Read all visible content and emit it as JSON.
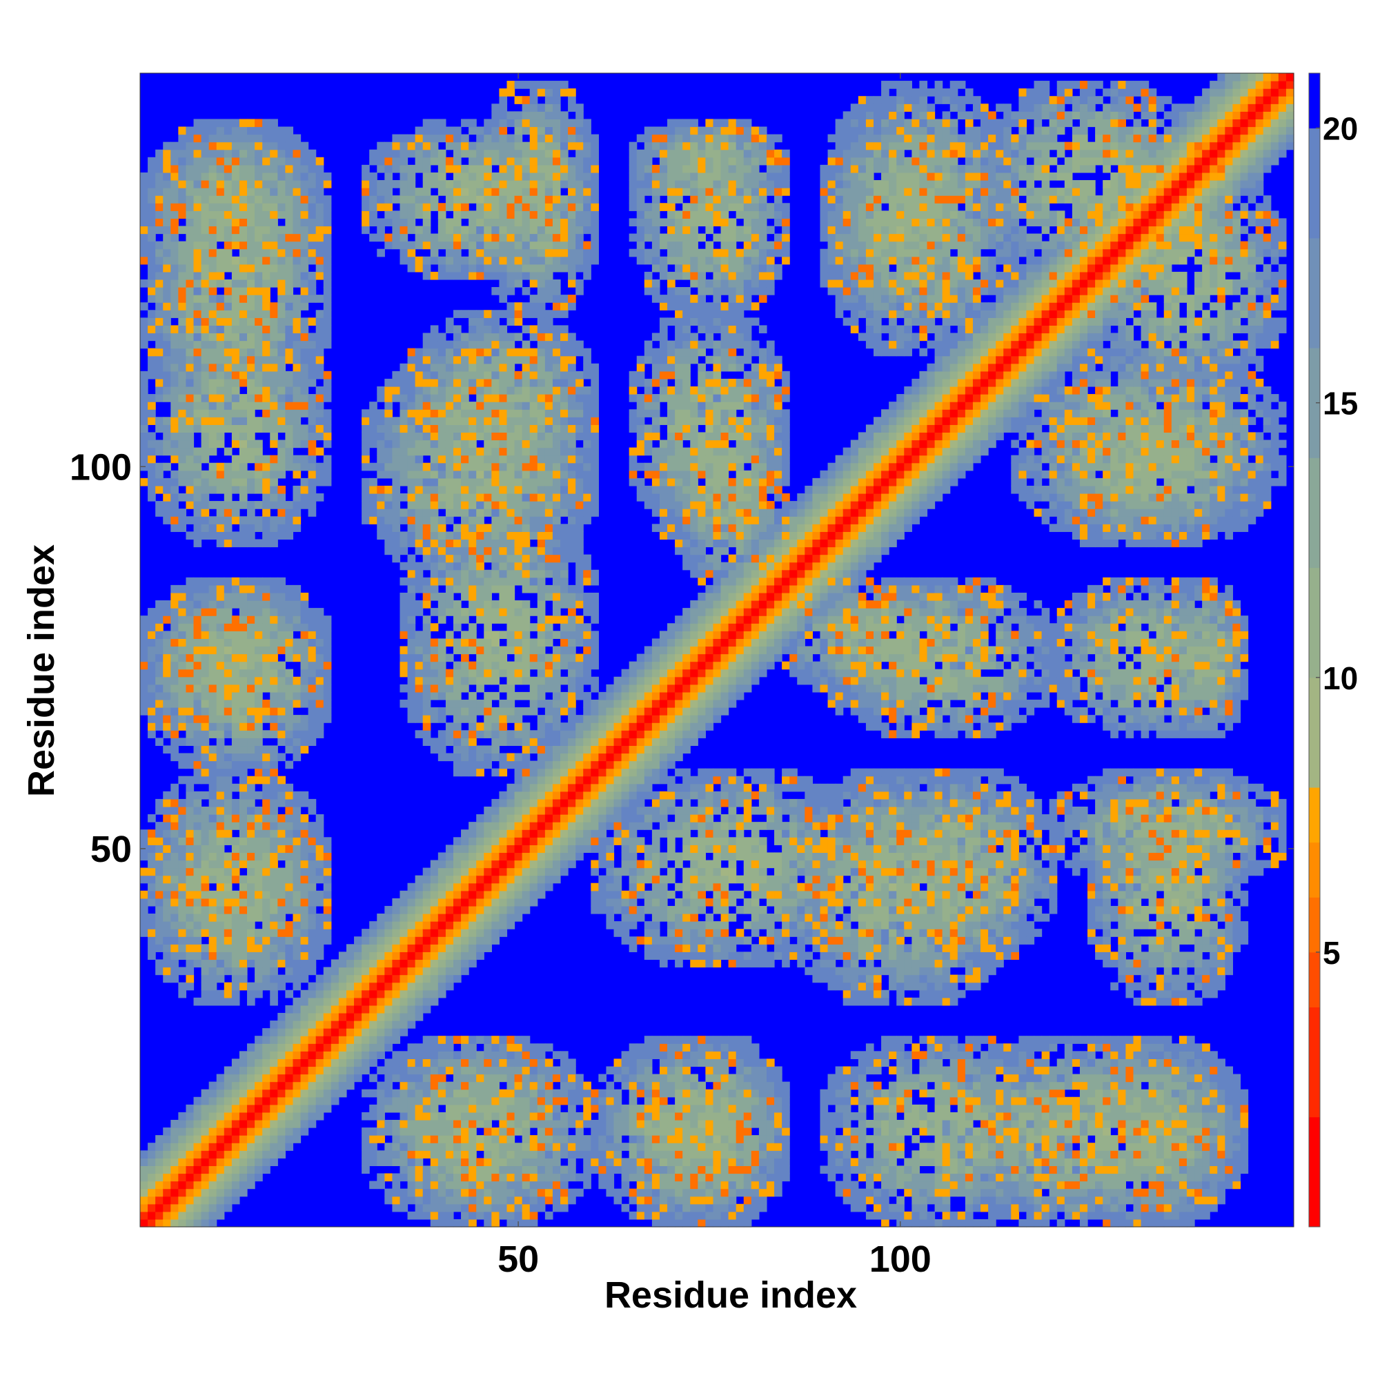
{
  "chart_data": {
    "type": "heatmap",
    "title": "",
    "xlabel": "Residue index",
    "ylabel": "Residue index",
    "n_residues": 151,
    "xlim": [
      1,
      151
    ],
    "ylim": [
      1,
      151
    ],
    "x_ticks": [
      50,
      100
    ],
    "y_ticks": [
      50,
      100
    ],
    "colorbar": {
      "ticks": [
        5,
        10,
        15,
        20
      ],
      "range": [
        0,
        21
      ],
      "levels": [
        {
          "from": 0,
          "to": 2,
          "color": "#ff0000"
        },
        {
          "from": 2,
          "to": 4,
          "color": "#ff2a00"
        },
        {
          "from": 4,
          "to": 5,
          "color": "#ff4d00"
        },
        {
          "from": 5,
          "to": 6,
          "color": "#ff7000"
        },
        {
          "from": 6,
          "to": 7,
          "color": "#ff8c00"
        },
        {
          "from": 7,
          "to": 8,
          "color": "#ffa500"
        },
        {
          "from": 8,
          "to": 10,
          "color": "#a3b583"
        },
        {
          "from": 10,
          "to": 12,
          "color": "#96b08c"
        },
        {
          "from": 12,
          "to": 14,
          "color": "#8aa898"
        },
        {
          "from": 14,
          "to": 16,
          "color": "#7d9ca8"
        },
        {
          "from": 16,
          "to": 18,
          "color": "#7090b8"
        },
        {
          "from": 18,
          "to": 20,
          "color": "#6484c4"
        },
        {
          "from": 20,
          "to": 21,
          "color": "#0000ff"
        }
      ]
    },
    "matrix_description_symmetric": true,
    "diagonal_value": 0,
    "background_value": 21,
    "contact_blocks": [
      {
        "x": [
          1,
          25
        ],
        "y": [
          105,
          145
        ]
      },
      {
        "x": [
          30,
          60
        ],
        "y": [
          125,
          145
        ]
      },
      {
        "x": [
          65,
          85
        ],
        "y": [
          135,
          145
        ]
      },
      {
        "x": [
          90,
          110
        ],
        "y": [
          120,
          145
        ]
      },
      {
        "x": [
          110,
          140
        ],
        "y": [
          125,
          150
        ]
      },
      {
        "x": [
          30,
          60
        ],
        "y": [
          85,
          115
        ]
      },
      {
        "x": [
          70,
          85
        ],
        "y": [
          85,
          110
        ]
      },
      {
        "x": [
          115,
          150
        ],
        "y": [
          90,
          115
        ]
      },
      {
        "x": [
          1,
          25
        ],
        "y": [
          65,
          85
        ]
      },
      {
        "x": [
          90,
          120
        ],
        "y": [
          65,
          85
        ]
      },
      {
        "x": [
          120,
          145
        ],
        "y": [
          65,
          85
        ]
      },
      {
        "x": [
          1,
          25
        ],
        "y": [
          35,
          55
        ]
      },
      {
        "x": [
          60,
          95
        ],
        "y": [
          35,
          60
        ]
      },
      {
        "x": [
          95,
          120
        ],
        "y": [
          35,
          60
        ]
      },
      {
        "x": [
          120,
          150
        ],
        "y": [
          45,
          60
        ]
      },
      {
        "x": [
          30,
          60
        ],
        "y": [
          1,
          25
        ]
      },
      {
        "x": [
          60,
          85
        ],
        "y": [
          1,
          25
        ]
      },
      {
        "x": [
          90,
          120
        ],
        "y": [
          1,
          25
        ]
      },
      {
        "x": [
          120,
          145
        ],
        "y": [
          1,
          25
        ]
      }
    ]
  }
}
